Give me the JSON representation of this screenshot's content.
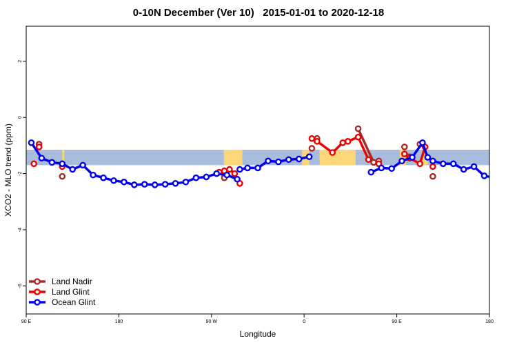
{
  "chart_data": {
    "type": "line",
    "title": "0-10N December (Ver 10)   2015-01-01 to 2020-12-18",
    "xlabel": "Longitude",
    "ylabel": "XCO2 - MLO trend (ppm)",
    "xlim": [
      90,
      540
    ],
    "ylim": [
      -7,
      3.25
    ],
    "x_ticks": [
      {
        "value": 90,
        "label": "90 E"
      },
      {
        "value": 180,
        "label": "180"
      },
      {
        "value": 270,
        "label": "90 W"
      },
      {
        "value": 360,
        "label": "0"
      },
      {
        "value": 450,
        "label": "90 E"
      },
      {
        "value": 540,
        "label": "180"
      }
    ],
    "y_ticks": [
      {
        "value": 2,
        "label": "2"
      },
      {
        "value": 0,
        "label": "0"
      },
      {
        "value": -2,
        "label": "-2"
      },
      {
        "value": -4,
        "label": "-4"
      },
      {
        "value": -6,
        "label": "-6"
      }
    ],
    "grid": false,
    "legend_position": "bottom-left",
    "background_band": {
      "y_range": [
        -1.7,
        -1.15
      ],
      "ocean_color": "#a9bcdb",
      "land_color": "#fcd77a"
    },
    "land_segments": [
      [
        125,
        127
      ],
      [
        282,
        300
      ],
      [
        358,
        365
      ],
      [
        375,
        410
      ],
      [
        453,
        459
      ],
      [
        475,
        480
      ]
    ],
    "series": [
      {
        "name": "Land Nadir",
        "color": "#a52a2a",
        "points": [
          [
            102.5,
            -0.95
          ],
          [
            125,
            -2.1
          ],
          [
            282.5,
            -2.15
          ],
          [
            367.5,
            -1.1
          ],
          [
            372.5,
            -0.75
          ],
          [
            412.5,
            -0.4
          ],
          [
            427.5,
            -1.6
          ],
          [
            432.5,
            -1.55
          ],
          [
            457.5,
            -1.05
          ],
          [
            462.5,
            -1.4
          ],
          [
            472.5,
            -0.95
          ],
          [
            485,
            -2.1
          ]
        ],
        "segments": [
          [
            [
              412.5,
              -0.4
            ],
            [
              427.5,
              -1.6
            ]
          ]
        ]
      },
      {
        "name": "Land Glint",
        "color": "#ee0000",
        "points": [
          [
            97.5,
            -1.65
          ],
          [
            102.5,
            -1.05
          ],
          [
            125,
            -1.75
          ],
          [
            277.5,
            -1.95
          ],
          [
            282.5,
            -1.9
          ],
          [
            287.5,
            -1.85
          ],
          [
            292.5,
            -2.0
          ],
          [
            297.5,
            -2.35
          ],
          [
            367.5,
            -0.75
          ],
          [
            372.5,
            -0.85
          ],
          [
            387.5,
            -1.25
          ],
          [
            397.5,
            -0.9
          ],
          [
            402.5,
            -0.85
          ],
          [
            412.5,
            -0.7
          ],
          [
            422.5,
            -1.5
          ],
          [
            432.5,
            -1.65
          ],
          [
            457.5,
            -1.3
          ],
          [
            462.5,
            -1.45
          ],
          [
            472.5,
            -1.65
          ],
          [
            477.5,
            -1.05
          ],
          [
            485,
            -1.75
          ]
        ],
        "segments": [
          [
            [
              277.5,
              -1.95
            ],
            [
              282.5,
              -1.9
            ],
            [
              287.5,
              -1.85
            ],
            [
              292.5,
              -2.0
            ],
            [
              297.5,
              -2.35
            ]
          ],
          [
            [
              367.5,
              -0.75
            ],
            [
              372.5,
              -0.85
            ],
            [
              387.5,
              -1.25
            ],
            [
              397.5,
              -0.9
            ],
            [
              402.5,
              -0.85
            ],
            [
              412.5,
              -0.7
            ],
            [
              422.5,
              -1.5
            ]
          ],
          [
            [
              457.5,
              -1.3
            ],
            [
              462.5,
              -1.45
            ],
            [
              472.5,
              -1.65
            ],
            [
              477.5,
              -1.05
            ]
          ]
        ]
      },
      {
        "name": "Ocean Glint",
        "color": "#0000ee",
        "points": [
          [
            95,
            -0.9
          ],
          [
            105,
            -1.45
          ],
          [
            115,
            -1.6
          ],
          [
            125,
            -1.65
          ],
          [
            135,
            -1.85
          ],
          [
            145,
            -1.7
          ],
          [
            155,
            -2.05
          ],
          [
            165,
            -2.15
          ],
          [
            175,
            -2.25
          ],
          [
            185,
            -2.3
          ],
          [
            195,
            -2.4
          ],
          [
            205,
            -2.38
          ],
          [
            215,
            -2.4
          ],
          [
            225,
            -2.38
          ],
          [
            235,
            -2.35
          ],
          [
            245,
            -2.3
          ],
          [
            255,
            -2.15
          ],
          [
            265,
            -2.12
          ],
          [
            275,
            -2.0
          ],
          [
            285,
            -2.05
          ],
          [
            295,
            -2.2
          ],
          [
            297.5,
            -1.85
          ],
          [
            305,
            -1.8
          ],
          [
            315,
            -1.8
          ],
          [
            325,
            -1.55
          ],
          [
            335,
            -1.58
          ],
          [
            345,
            -1.5
          ],
          [
            355,
            -1.48
          ],
          [
            365,
            -1.4
          ],
          [
            425,
            -1.95
          ],
          [
            435,
            -1.8
          ],
          [
            445,
            -1.82
          ],
          [
            455,
            -1.55
          ],
          [
            465,
            -1.42
          ],
          [
            475,
            -0.9
          ],
          [
            480,
            -1.42
          ],
          [
            485,
            -1.55
          ],
          [
            495,
            -1.65
          ],
          [
            505,
            -1.65
          ],
          [
            515,
            -1.85
          ],
          [
            525,
            -1.75
          ],
          [
            535,
            -2.08
          ],
          [
            545,
            -2.15
          ],
          [
            555,
            -2.25
          ]
        ],
        "segments": [
          [
            [
              95,
              -0.9
            ],
            [
              105,
              -1.45
            ],
            [
              115,
              -1.6
            ],
            [
              125,
              -1.65
            ],
            [
              135,
              -1.85
            ],
            [
              145,
              -1.7
            ],
            [
              155,
              -2.05
            ],
            [
              165,
              -2.15
            ],
            [
              175,
              -2.25
            ],
            [
              185,
              -2.3
            ],
            [
              195,
              -2.4
            ],
            [
              205,
              -2.38
            ],
            [
              215,
              -2.4
            ],
            [
              225,
              -2.38
            ],
            [
              235,
              -2.35
            ],
            [
              245,
              -2.3
            ],
            [
              255,
              -2.15
            ],
            [
              265,
              -2.12
            ],
            [
              275,
              -2.0
            ],
            [
              285,
              -2.05
            ],
            [
              295,
              -2.2
            ]
          ],
          [
            [
              297.5,
              -1.85
            ],
            [
              305,
              -1.8
            ],
            [
              315,
              -1.8
            ],
            [
              325,
              -1.55
            ],
            [
              335,
              -1.58
            ],
            [
              345,
              -1.5
            ],
            [
              355,
              -1.48
            ],
            [
              365,
              -1.4
            ]
          ],
          [
            [
              425,
              -1.95
            ],
            [
              435,
              -1.8
            ],
            [
              445,
              -1.82
            ],
            [
              455,
              -1.55
            ],
            [
              465,
              -1.42
            ],
            [
              475,
              -0.9
            ],
            [
              480,
              -1.42
            ],
            [
              485,
              -1.55
            ],
            [
              495,
              -1.65
            ],
            [
              505,
              -1.65
            ],
            [
              515,
              -1.85
            ],
            [
              525,
              -1.75
            ],
            [
              535,
              -2.08
            ],
            [
              545,
              -2.15
            ],
            [
              555,
              -2.25
            ]
          ]
        ]
      }
    ]
  }
}
